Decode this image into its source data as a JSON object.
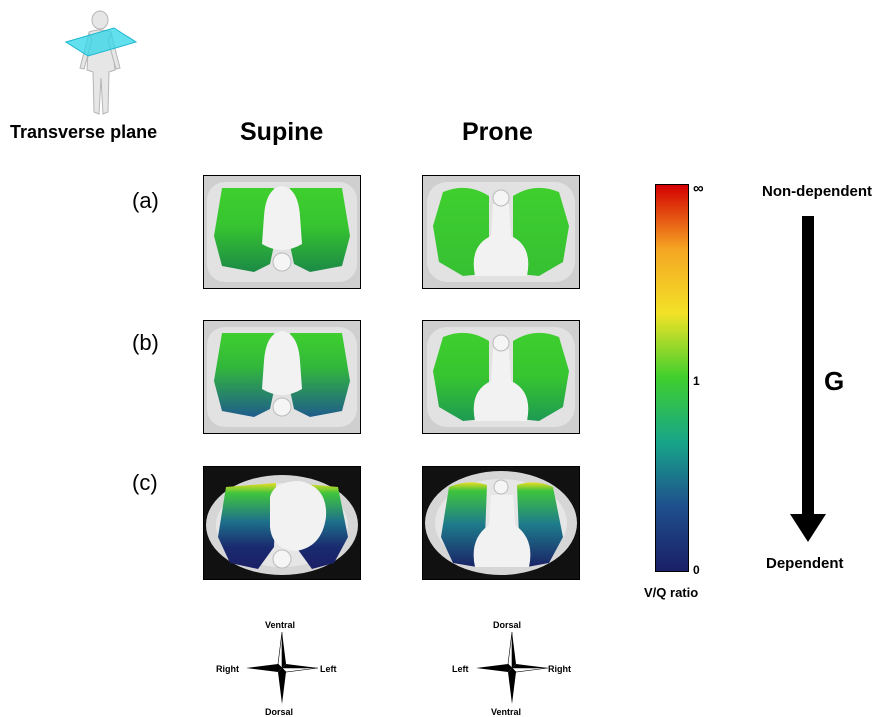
{
  "plane_label": "Transverse plane",
  "columns": [
    "Supine",
    "Prone"
  ],
  "rows": [
    "(a)",
    "(b)",
    "(c)"
  ],
  "colorbar": {
    "title": "V/Q ratio",
    "ticks": {
      "top": "∞",
      "middle": "1",
      "bottom": "0"
    },
    "colors": [
      "#d40000",
      "#f5a623",
      "#f2e227",
      "#3fcf2e",
      "#17a589",
      "#1f4f8c",
      "#1a1f66"
    ]
  },
  "gravity": {
    "top_label": "Non-dependent",
    "bottom_label": "Dependent",
    "symbol": "G"
  },
  "compass_supine": {
    "top": "Ventral",
    "bottom": "Dorsal",
    "left": "Right",
    "right": "Left"
  },
  "compass_prone": {
    "top": "Dorsal",
    "bottom": "Ventral",
    "left": "Left",
    "right": "Right"
  }
}
